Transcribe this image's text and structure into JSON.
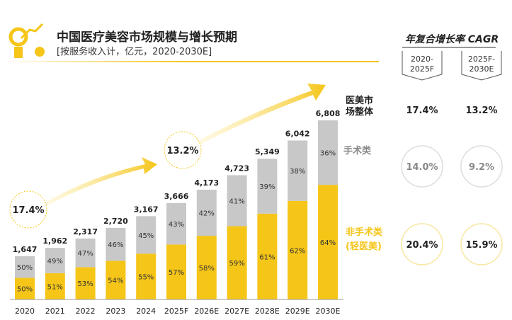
{
  "chart_data": {
    "type": "bar",
    "stacked": true,
    "title": "中国医疗美容市场规模与增长预期",
    "subtitle": "[按服务收入计，亿元，2020-2030E]",
    "categories": [
      "2020",
      "2021",
      "2022",
      "2023",
      "2024",
      "2025F",
      "2026E",
      "2027E",
      "2028E",
      "2029E",
      "2030E"
    ],
    "totals": [
      1647,
      1962,
      2317,
      2720,
      3167,
      3666,
      4173,
      4723,
      5349,
      6042,
      6808
    ],
    "series": [
      {
        "name": "非手术类(轻医美)",
        "color": "#f5c518",
        "share_pct": [
          50,
          51,
          53,
          54,
          55,
          57,
          58,
          59,
          61,
          62,
          64
        ]
      },
      {
        "name": "手术类",
        "color": "#c8c8c8",
        "share_pct": [
          50,
          49,
          47,
          46,
          45,
          43,
          42,
          41,
          39,
          38,
          36
        ]
      }
    ],
    "total_label": "医美市场整体",
    "arrow_annotations": [
      "17.4%",
      "13.2%"
    ],
    "ylim": [
      0,
      7000
    ],
    "grid": false,
    "cagr_table": {
      "title": "年复合增长率 CAGR",
      "periods": [
        "2020-2025F",
        "2025F-2030E"
      ],
      "rows": [
        {
          "label": "医美市场整体",
          "values": [
            "17.4%",
            "13.2%"
          ]
        },
        {
          "label": "手术类",
          "values": [
            "14.0%",
            "9.2%"
          ]
        },
        {
          "label": "非手术类(轻医美)",
          "values": [
            "20.4%",
            "15.9%"
          ]
        }
      ]
    }
  }
}
